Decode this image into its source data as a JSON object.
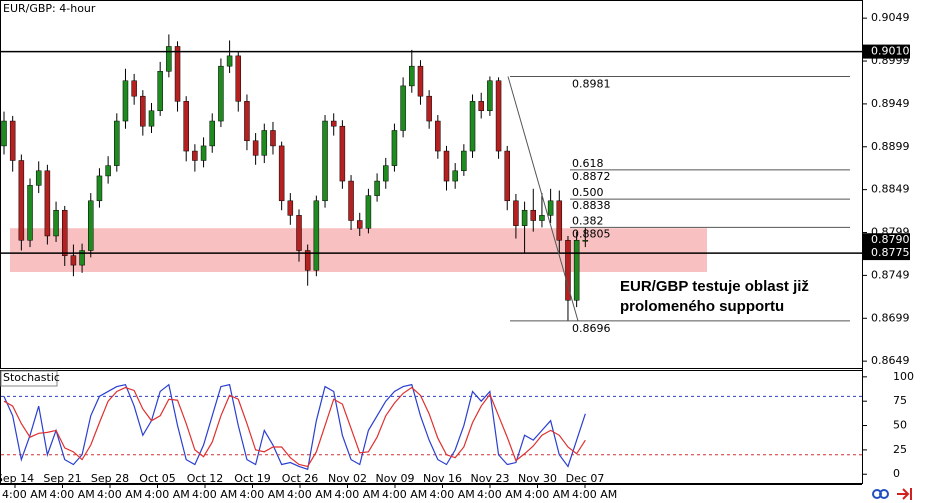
{
  "chart_data": [
    {
      "type": "candlestick",
      "title": "EUR/GBP: 4-hour",
      "up_color": "#1f8a1f",
      "down_color": "#b52020",
      "ylim": [
        0.8641,
        0.9069
      ],
      "yticks": [
        0.8649,
        0.8699,
        0.8749,
        0.8799,
        0.8849,
        0.8899,
        0.8949,
        0.8999,
        0.9049
      ],
      "date_labels": [
        "Sep 14",
        "Sep 21",
        "Sep 28",
        "Oct 05",
        "Oct 12",
        "Oct 19",
        "Oct 26",
        "Nov 02",
        "Nov 09",
        "Nov 16",
        "Nov 23",
        "Nov 30",
        "Dec 07"
      ],
      "time_labels": [
        "4:00 AM",
        "4:00 AM",
        "4:00 AM",
        "4:00 AM",
        "4:00 AM",
        "4:00 AM",
        "4:00 AM",
        "4:00 AM",
        "4:00 AM",
        "4:00 AM",
        "4:00 AM",
        "4:00 AM",
        "4:00 AM"
      ],
      "ohlc": [
        [
          0.89,
          0.894,
          0.889,
          0.8929
        ],
        [
          0.8929,
          0.8935,
          0.887,
          0.8883
        ],
        [
          0.8883,
          0.889,
          0.8778,
          0.879
        ],
        [
          0.879,
          0.8862,
          0.8782,
          0.8854
        ],
        [
          0.8854,
          0.8882,
          0.8845,
          0.8871
        ],
        [
          0.8871,
          0.8878,
          0.8785,
          0.8795
        ],
        [
          0.8795,
          0.8835,
          0.8788,
          0.8825
        ],
        [
          0.8825,
          0.883,
          0.876,
          0.8772
        ],
        [
          0.8772,
          0.8785,
          0.8748,
          0.8761
        ],
        [
          0.8761,
          0.8786,
          0.8752,
          0.8778
        ],
        [
          0.8778,
          0.8845,
          0.877,
          0.8836
        ],
        [
          0.8836,
          0.8874,
          0.8828,
          0.8865
        ],
        [
          0.8865,
          0.8888,
          0.8856,
          0.8877
        ],
        [
          0.8877,
          0.8938,
          0.887,
          0.8929
        ],
        [
          0.8929,
          0.899,
          0.892,
          0.8976
        ],
        [
          0.8976,
          0.8984,
          0.8948,
          0.8958
        ],
        [
          0.8958,
          0.8965,
          0.8912,
          0.8923
        ],
        [
          0.8923,
          0.895,
          0.8915,
          0.8941
        ],
        [
          0.8941,
          0.8998,
          0.8935,
          0.8987
        ],
        [
          0.8987,
          0.903,
          0.898,
          0.9016
        ],
        [
          0.9016,
          0.9022,
          0.894,
          0.8952
        ],
        [
          0.8952,
          0.8958,
          0.8882,
          0.8894
        ],
        [
          0.8894,
          0.8902,
          0.887,
          0.8883
        ],
        [
          0.8883,
          0.891,
          0.8875,
          0.89
        ],
        [
          0.89,
          0.8938,
          0.8892,
          0.8929
        ],
        [
          0.8929,
          0.9002,
          0.8922,
          0.8993
        ],
        [
          0.8993,
          0.9023,
          0.8985,
          0.9005
        ],
        [
          0.9005,
          0.901,
          0.894,
          0.8952
        ],
        [
          0.8952,
          0.896,
          0.8895,
          0.8906
        ],
        [
          0.8906,
          0.8915,
          0.8878,
          0.8889
        ],
        [
          0.8889,
          0.8926,
          0.888,
          0.8918
        ],
        [
          0.8918,
          0.8928,
          0.889,
          0.89
        ],
        [
          0.89,
          0.8905,
          0.8825,
          0.8836
        ],
        [
          0.8836,
          0.8845,
          0.8808,
          0.8819
        ],
        [
          0.8819,
          0.8826,
          0.8765,
          0.8778
        ],
        [
          0.8778,
          0.8785,
          0.8737,
          0.8755
        ],
        [
          0.8755,
          0.8842,
          0.8748,
          0.8836
        ],
        [
          0.8836,
          0.8936,
          0.8828,
          0.8929
        ],
        [
          0.8929,
          0.8938,
          0.8912,
          0.8923
        ],
        [
          0.8923,
          0.893,
          0.885,
          0.8859
        ],
        [
          0.8859,
          0.8866,
          0.8802,
          0.8813
        ],
        [
          0.8813,
          0.8822,
          0.8795,
          0.8804
        ],
        [
          0.8804,
          0.885,
          0.8798,
          0.8842
        ],
        [
          0.8842,
          0.8868,
          0.8835,
          0.8859
        ],
        [
          0.8859,
          0.8886,
          0.885,
          0.8877
        ],
        [
          0.8877,
          0.8926,
          0.887,
          0.8918
        ],
        [
          0.8918,
          0.898,
          0.891,
          0.897
        ],
        [
          0.897,
          0.9012,
          0.8962,
          0.8993
        ],
        [
          0.8993,
          0.9,
          0.8948,
          0.8958
        ],
        [
          0.8958,
          0.8965,
          0.892,
          0.8929
        ],
        [
          0.8929,
          0.8936,
          0.8885,
          0.8894
        ],
        [
          0.8894,
          0.89,
          0.8848,
          0.8859
        ],
        [
          0.8859,
          0.888,
          0.885,
          0.8871
        ],
        [
          0.8871,
          0.8902,
          0.8865,
          0.8894
        ],
        [
          0.8894,
          0.896,
          0.8886,
          0.8952
        ],
        [
          0.8952,
          0.8962,
          0.8932,
          0.8941
        ],
        [
          0.8941,
          0.8981,
          0.8935,
          0.8976
        ],
        [
          0.8976,
          0.898,
          0.8885,
          0.8894
        ],
        [
          0.8894,
          0.89,
          0.8825,
          0.8836
        ],
        [
          0.8836,
          0.8844,
          0.8792,
          0.8807
        ],
        [
          0.8807,
          0.8835,
          0.8775,
          0.8825
        ],
        [
          0.8825,
          0.885,
          0.88,
          0.8813
        ],
        [
          0.8813,
          0.8845,
          0.8805,
          0.8819
        ],
        [
          0.8819,
          0.885,
          0.881,
          0.8836
        ],
        [
          0.8836,
          0.8848,
          0.8775,
          0.879
        ],
        [
          0.879,
          0.8795,
          0.8696,
          0.872
        ],
        [
          0.872,
          0.88,
          0.8712,
          0.879
        ],
        [
          0.879,
          0.8805,
          0.8782,
          0.879
        ]
      ],
      "levels": [
        {
          "value": 0.901,
          "label": "0.9010"
        },
        0.8775
      ],
      "current_price": {
        "value": 0.879,
        "label": "0.8790"
      },
      "zone": {
        "range": [
          0.8753,
          0.8804
        ],
        "color": "#f7b5b5"
      },
      "fibonacci": {
        "high": 0.8981,
        "low": 0.8696,
        "levels": [
          {
            "ratio": 0.618,
            "price": 0.8872
          },
          {
            "ratio": {
              "value": 0.5,
              "label": "0.500"
            },
            "price": 0.8838
          },
          {
            "ratio": 0.382,
            "price": 0.8805
          }
        ]
      },
      "annotation": [
        "EUR/GBP testuje oblast již",
        "prolomeného supportu"
      ]
    },
    {
      "type": "line",
      "title": "Stochastic",
      "ylim": [
        -9,
        106
      ],
      "yticks": [
        0,
        25,
        50,
        75,
        100
      ],
      "levels": [
        {
          "value": 80,
          "color": "#3040c0"
        },
        {
          "value": 20,
          "color": "#d03030"
        }
      ],
      "series": [
        {
          "color": "#2a3fd0",
          "values": [
            80,
            60,
            15,
            40,
            70,
            20,
            45,
            15,
            10,
            20,
            60,
            80,
            85,
            90,
            92,
            70,
            40,
            55,
            85,
            92,
            50,
            15,
            10,
            30,
            60,
            90,
            92,
            50,
            15,
            10,
            45,
            30,
            10,
            12,
            8,
            5,
            55,
            90,
            85,
            40,
            15,
            10,
            45,
            60,
            75,
            85,
            90,
            92,
            60,
            35,
            15,
            10,
            25,
            50,
            85,
            75,
            85,
            20,
            10,
            12,
            40,
            35,
            45,
            55,
            20,
            8,
            35,
            62
          ]
        },
        {
          "color": "#e03030",
          "values": [
            75,
            70,
            52,
            38,
            42,
            43,
            45,
            27,
            23,
            15,
            30,
            53,
            75,
            85,
            89,
            86,
            67,
            55,
            60,
            77,
            76,
            52,
            25,
            18,
            33,
            60,
            81,
            77,
            52,
            25,
            23,
            28,
            28,
            17,
            10,
            8,
            23,
            50,
            77,
            72,
            47,
            22,
            23,
            38,
            60,
            73,
            83,
            89,
            81,
            62,
            37,
            20,
            17,
            28,
            53,
            70,
            82,
            60,
            38,
            14,
            21,
            29,
            40,
            45,
            40,
            28,
            21,
            35
          ]
        }
      ]
    }
  ]
}
